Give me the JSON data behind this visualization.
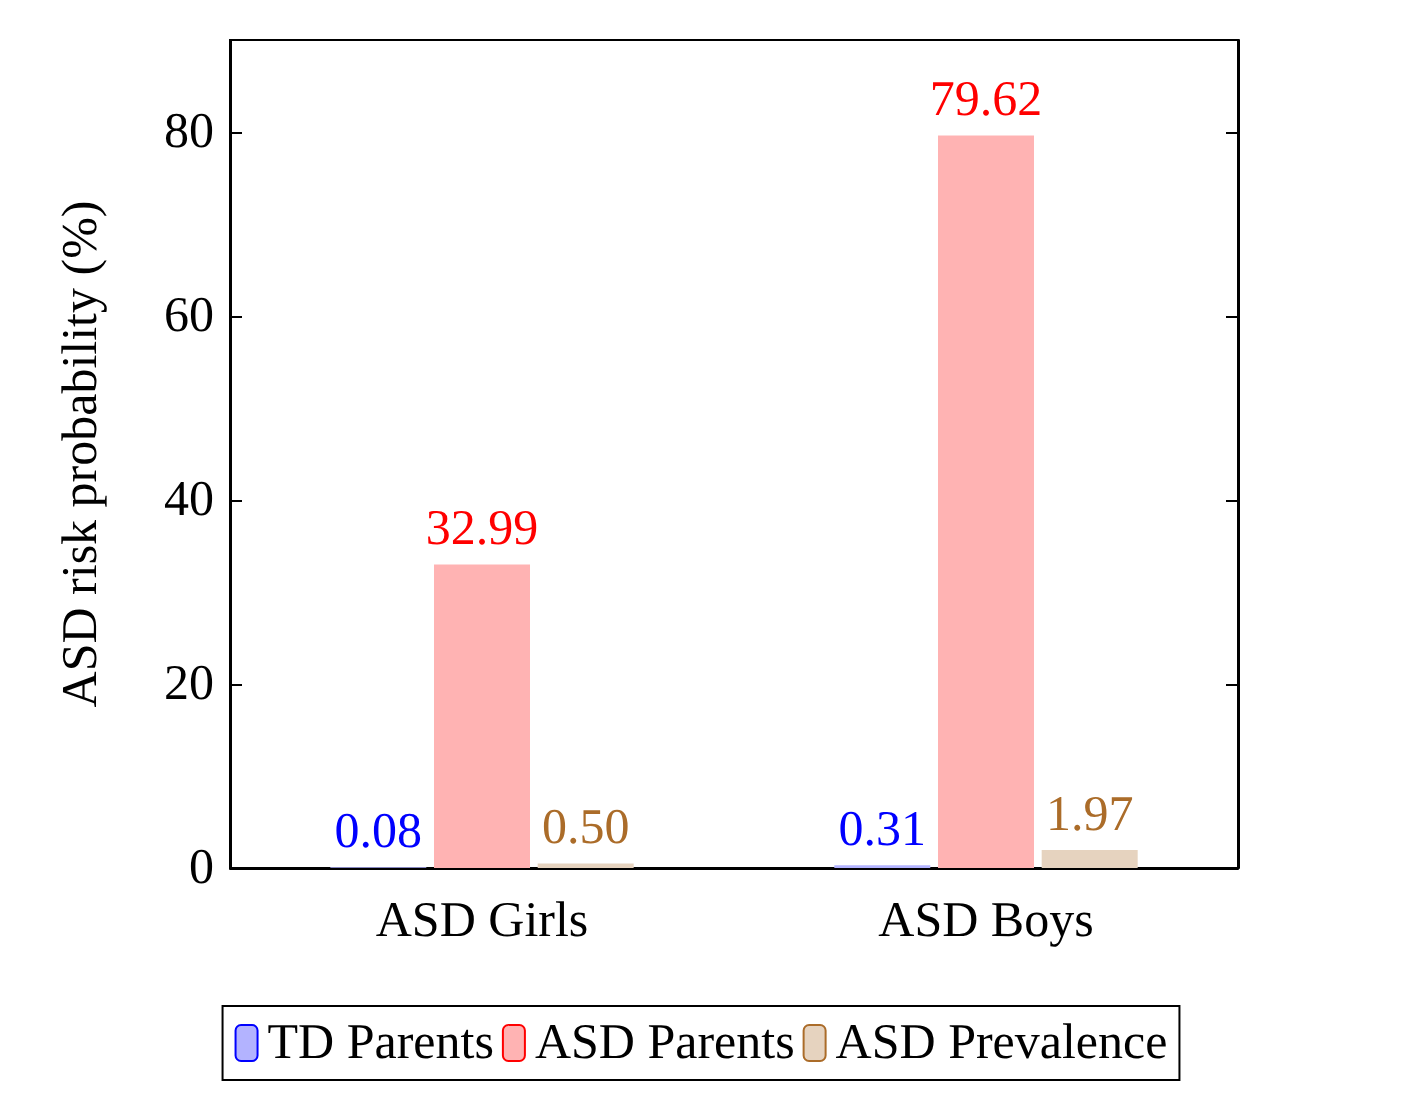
{
  "chart_data": {
    "type": "bar",
    "ylabel": "ASD risk probability (%)",
    "categories": [
      "ASD Girls",
      "ASD Boys"
    ],
    "series": [
      {
        "name": "TD Parents",
        "color": "#b3b3ff",
        "values": [
          0.08,
          0.31
        ],
        "value_labels": [
          "0.08",
          "0.31"
        ]
      },
      {
        "name": "ASD Parents",
        "color": "#ffb3b3",
        "values": [
          32.99,
          79.62
        ],
        "value_labels": [
          "32.99",
          "79.62"
        ]
      },
      {
        "name": "ASD Prevalence",
        "color": "#e6d3bf",
        "values": [
          0.5,
          1.97
        ],
        "value_labels": [
          "0.50",
          "1.97"
        ]
      }
    ],
    "ylim": [
      0,
      90
    ],
    "yticks": [
      0,
      20,
      40,
      60,
      80
    ],
    "legend": "bottom",
    "grid": false
  }
}
